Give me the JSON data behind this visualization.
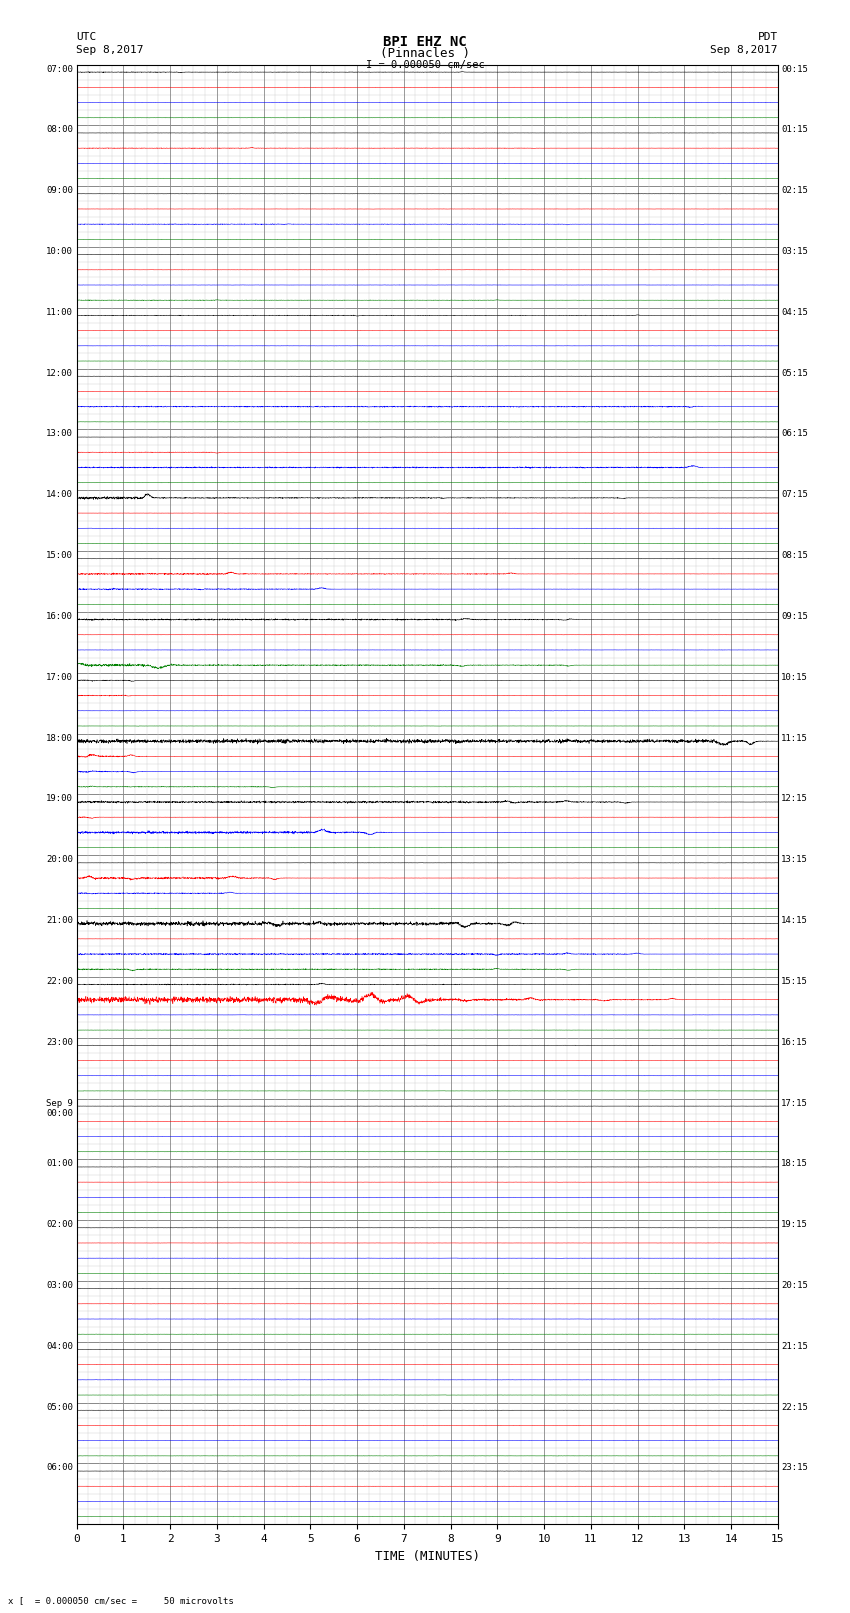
{
  "title_line1": "BPI EHZ NC",
  "title_line2": "(Pinnacles )",
  "scale_label": "I = 0.000050 cm/sec",
  "left_header_line1": "UTC",
  "left_header_line2": "Sep 8,2017",
  "right_header_line1": "PDT",
  "right_header_line2": "Sep 8,2017",
  "bottom_label": "TIME (MINUTES)",
  "bottom_note": "x [  = 0.000050 cm/sec =     50 microvolts",
  "left_times": [
    "07:00",
    "08:00",
    "09:00",
    "10:00",
    "11:00",
    "12:00",
    "13:00",
    "14:00",
    "15:00",
    "16:00",
    "17:00",
    "18:00",
    "19:00",
    "20:00",
    "21:00",
    "22:00",
    "23:00",
    "Sep 9\n00:00",
    "01:00",
    "02:00",
    "03:00",
    "04:00",
    "05:00",
    "06:00"
  ],
  "right_times": [
    "00:15",
    "01:15",
    "02:15",
    "03:15",
    "04:15",
    "05:15",
    "06:15",
    "07:15",
    "08:15",
    "09:15",
    "10:15",
    "11:15",
    "12:15",
    "13:15",
    "14:15",
    "15:15",
    "16:15",
    "17:15",
    "18:15",
    "19:15",
    "20:15",
    "21:15",
    "22:15",
    "23:15"
  ],
  "n_rows": 24,
  "n_cols": 15,
  "traces_per_row": 4,
  "trace_colors": [
    "black",
    "red",
    "blue",
    "green"
  ],
  "fig_width": 8.5,
  "fig_height": 16.13,
  "bg_color": "white",
  "grid_major_color": "#888888",
  "grid_minor_color": "#cccccc",
  "trace_linewidth": 0.4,
  "noise_amp": 0.008,
  "spike_scale": 0.38
}
